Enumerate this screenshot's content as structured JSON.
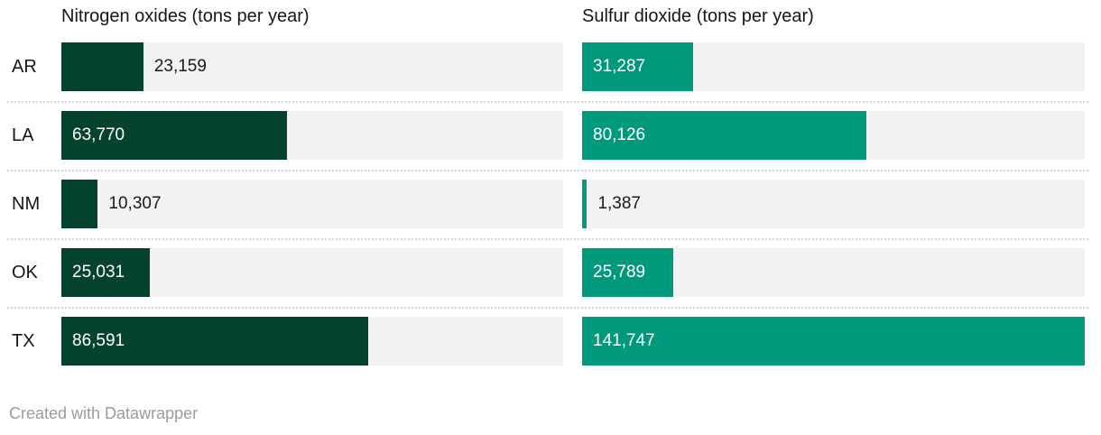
{
  "chart_data": {
    "type": "bar",
    "orientation": "horizontal",
    "layout": "two-column paired bar chart with shared scale",
    "scale_max": 141747,
    "grid": false,
    "legend": false,
    "columns": [
      {
        "key": "nox",
        "header": "Nitrogen oxides (tons per year)",
        "color": "#05432e"
      },
      {
        "key": "so2",
        "header": "Sulfur dioxide (tons per year)",
        "color": "#00997b"
      }
    ],
    "track_color": "#f2f2f2",
    "rows": [
      {
        "state": "AR",
        "nox": {
          "value": 23159,
          "label": "23,159",
          "label_inside": false
        },
        "so2": {
          "value": 31287,
          "label": "31,287",
          "label_inside": true
        }
      },
      {
        "state": "LA",
        "nox": {
          "value": 63770,
          "label": "63,770",
          "label_inside": true
        },
        "so2": {
          "value": 80126,
          "label": "80,126",
          "label_inside": true
        }
      },
      {
        "state": "NM",
        "nox": {
          "value": 10307,
          "label": "10,307",
          "label_inside": false
        },
        "so2": {
          "value": 1387,
          "label": "1,387",
          "label_inside": false
        }
      },
      {
        "state": "OK",
        "nox": {
          "value": 25031,
          "label": "25,031",
          "label_inside": true
        },
        "so2": {
          "value": 25789,
          "label": "25,789",
          "label_inside": true
        }
      },
      {
        "state": "TX",
        "nox": {
          "value": 86591,
          "label": "86,591",
          "label_inside": true
        },
        "so2": {
          "value": 141747,
          "label": "141,747",
          "label_inside": true
        }
      }
    ]
  },
  "footer": {
    "credit": "Created with Datawrapper"
  }
}
